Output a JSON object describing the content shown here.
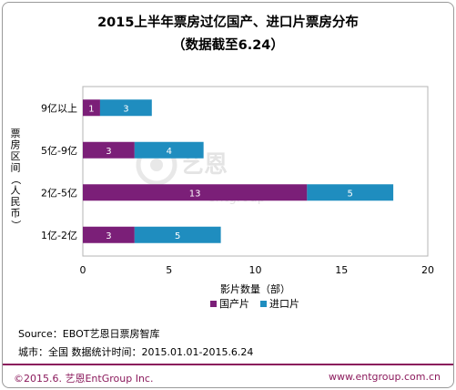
{
  "title_line1": "2015上半年票房过亿国产、进口片票房分布",
  "title_line2": "（数据截至6.24）",
  "chart_data": {
    "type": "bar",
    "orientation": "horizontal",
    "stacked": true,
    "categories": [
      "9亿以上",
      "5亿-9亿",
      "2亿-5亿",
      "1亿-2亿"
    ],
    "series": [
      {
        "name": "国产片",
        "values": [
          1,
          3,
          13,
          3
        ],
        "color": "#7b1f78"
      },
      {
        "name": "进口片",
        "values": [
          3,
          4,
          5,
          5
        ],
        "color": "#1f8dbf"
      }
    ],
    "xlabel": "影片数量（部）",
    "ylabel": "票房区间（人民币）",
    "xlim": [
      0,
      20
    ],
    "xticks": [
      0,
      5,
      10,
      15,
      20
    ],
    "grid": false,
    "legend_position": "bottom"
  },
  "watermark": {
    "brand": "艺恩",
    "sub": "entgroup"
  },
  "source_line": "Source：EBOT艺恩日票房智库",
  "info_line": "城市：全国   数据统计时间：2015.01.01-2015.6.24",
  "footer_left": "©2015.6. 艺恩EntGroup Inc.",
  "footer_right": "www.entgroup.com.cn"
}
